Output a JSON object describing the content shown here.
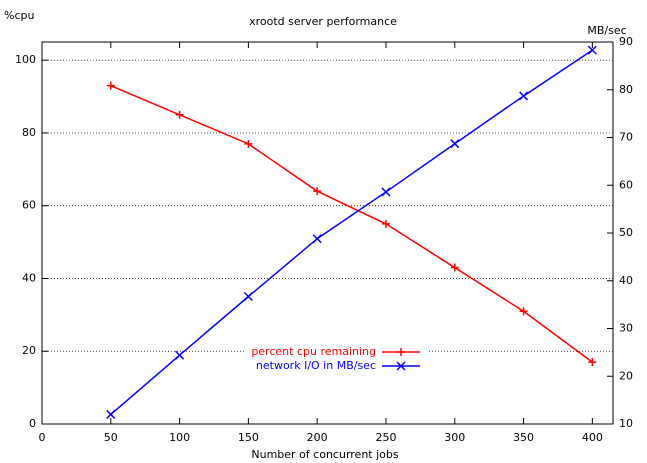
{
  "chart_data": {
    "type": "line",
    "title": "xrootd server performance",
    "x_label": "Number of concurrent jobs",
    "y_label": "%cpu",
    "y2_label": "MB/sec",
    "x": [
      50,
      100,
      150,
      200,
      250,
      300,
      350,
      400
    ],
    "xlim": [
      0,
      415
    ],
    "xticks": [
      0,
      50,
      100,
      150,
      200,
      250,
      300,
      350,
      400
    ],
    "ylim": [
      0,
      105
    ],
    "yticks": [
      0,
      20,
      40,
      60,
      80,
      100
    ],
    "y2lim": [
      10,
      90
    ],
    "y2ticks": [
      10,
      20,
      30,
      40,
      50,
      60,
      70,
      80,
      90
    ],
    "grid": true,
    "series": [
      {
        "name": "percent cpu remaining",
        "color": "#ff0000",
        "marker": "plus",
        "values": [
          93,
          85,
          77,
          64,
          55,
          43,
          31,
          17
        ]
      },
      {
        "name": "network I/O in MB/sec",
        "color": "#0000ff",
        "marker": "cross",
        "axis": "y2",
        "values": [
          12,
          24.4,
          36.7,
          48.8,
          58.6,
          68.7,
          78.7,
          88.3
        ]
      }
    ]
  }
}
